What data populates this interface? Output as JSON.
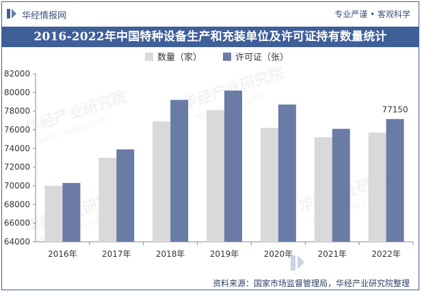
{
  "header": {
    "brand": "华经情报网",
    "slogan": "专业严谨 • 客观科学"
  },
  "title": "2016-2022年中国特种设备生产和充装单位及许可证持有数量统计",
  "source": "资料来源：国家市场监督管理局，华经产业研究院整理",
  "watermark": {
    "text": "华经产业研究院",
    "url": "www.huaon.com"
  },
  "colors": {
    "title_bg": "#3f5f99",
    "series1": "#d9d9d9",
    "series2": "#6a7ba6",
    "axis": "#888888",
    "text": "#333333"
  },
  "chart_data": {
    "type": "bar",
    "categories": [
      "2016年",
      "2017年",
      "2018年",
      "2019年",
      "2020年",
      "2021年",
      "2022年"
    ],
    "series": [
      {
        "name": "数量（家）",
        "values": [
          70000,
          73000,
          76900,
          78100,
          76200,
          75200,
          75700
        ]
      },
      {
        "name": "许可证（张）",
        "values": [
          70300,
          73900,
          79200,
          80200,
          78700,
          76100,
          77150
        ]
      }
    ],
    "yticks": [
      64000,
      66000,
      68000,
      70000,
      72000,
      74000,
      76000,
      78000,
      80000,
      82000
    ],
    "ylim": [
      64000,
      82000
    ],
    "data_labels": [
      {
        "series": 1,
        "index": 6,
        "text": "77150"
      }
    ],
    "legend_position": "top",
    "grid": false
  }
}
